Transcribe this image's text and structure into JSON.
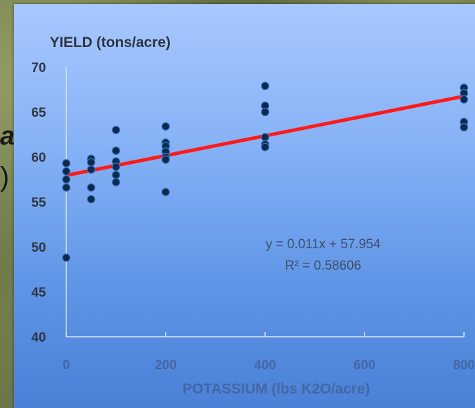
{
  "chart_data": {
    "type": "scatter",
    "title": "",
    "ylabel": "YIELD (tons/acre)",
    "xlabel": "POTASSIUM (lbs K2O/acre)",
    "xlim": [
      0,
      800
    ],
    "ylim": [
      40,
      70
    ],
    "x_ticks": [
      "0",
      "200",
      "400",
      "600",
      "800"
    ],
    "y_ticks": [
      "70",
      "65",
      "60",
      "55",
      "50",
      "45",
      "40"
    ],
    "x_tick_values": [
      0,
      200,
      400,
      600,
      800
    ],
    "y_tick_values": [
      70,
      65,
      60,
      55,
      50,
      45,
      40
    ],
    "grid": false,
    "legend": "none",
    "point_color": "#0d2a4a",
    "point_stroke": "#3a78c8",
    "trend_color": "#ff1a1a",
    "points": [
      {
        "x": 0,
        "y": 59.3
      },
      {
        "x": 0,
        "y": 58.4
      },
      {
        "x": 0,
        "y": 57.5
      },
      {
        "x": 0,
        "y": 56.6
      },
      {
        "x": 0,
        "y": 48.8
      },
      {
        "x": 50,
        "y": 59.8
      },
      {
        "x": 50,
        "y": 59.4
      },
      {
        "x": 50,
        "y": 58.6
      },
      {
        "x": 50,
        "y": 56.6
      },
      {
        "x": 50,
        "y": 55.3
      },
      {
        "x": 100,
        "y": 63.0
      },
      {
        "x": 100,
        "y": 60.7
      },
      {
        "x": 100,
        "y": 59.5
      },
      {
        "x": 100,
        "y": 58.9
      },
      {
        "x": 100,
        "y": 58.0
      },
      {
        "x": 100,
        "y": 57.2
      },
      {
        "x": 200,
        "y": 63.4
      },
      {
        "x": 200,
        "y": 61.6
      },
      {
        "x": 200,
        "y": 61.2
      },
      {
        "x": 200,
        "y": 60.6
      },
      {
        "x": 200,
        "y": 60.0
      },
      {
        "x": 200,
        "y": 59.7
      },
      {
        "x": 200,
        "y": 56.1
      },
      {
        "x": 400,
        "y": 67.9
      },
      {
        "x": 400,
        "y": 65.7
      },
      {
        "x": 400,
        "y": 65.0
      },
      {
        "x": 400,
        "y": 62.2
      },
      {
        "x": 400,
        "y": 61.4
      },
      {
        "x": 400,
        "y": 61.1
      },
      {
        "x": 800,
        "y": 67.7
      },
      {
        "x": 800,
        "y": 67.1
      },
      {
        "x": 800,
        "y": 66.4
      },
      {
        "x": 800,
        "y": 63.9
      },
      {
        "x": 800,
        "y": 63.3
      }
    ],
    "trendline": {
      "slope": 0.011,
      "intercept": 57.954
    },
    "equation_label": "y = 0.011x + 57.954",
    "r2_label": "R² = 0.58606"
  },
  "background": {
    "glyph_a": "a",
    "glyph_b": ")"
  }
}
